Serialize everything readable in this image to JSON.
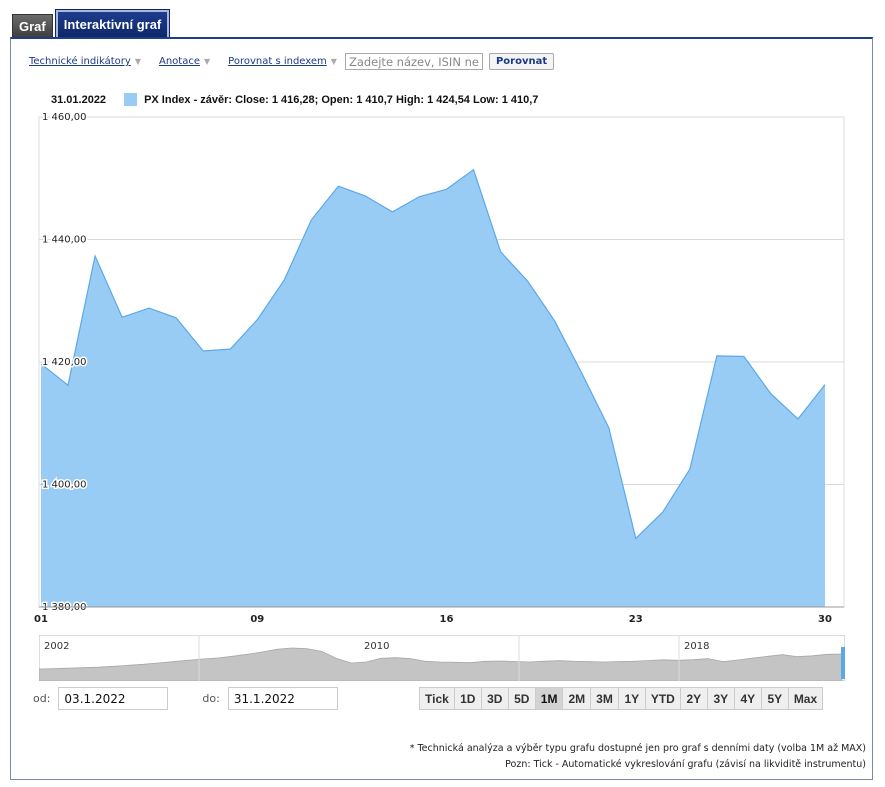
{
  "tabs": [
    {
      "label": "Graf"
    },
    {
      "label": "Interaktivní graf"
    }
  ],
  "toolbar": {
    "indicators_label": "Technické indikátory",
    "annotations_label": "Anotace",
    "compare_index_label": "Porovnat s indexem",
    "compare_placeholder": "Zadejte název, ISIN nebo ticker",
    "compare_button": "Porovnat"
  },
  "legend": {
    "date": "31.01.2022",
    "text": "PX Index - závěr: Close: 1 416,28; Open: 1 410,7 High: 1 424,54 Low: 1 410,7"
  },
  "chart_data": {
    "type": "area",
    "series": [
      {
        "name": "PX Index - závěr",
        "color": "#99ccf5",
        "line_color": "#5aa8ea",
        "x": [
          "2022-01-01",
          "2022-01-02",
          "2022-01-03",
          "2022-01-04",
          "2022-01-05",
          "2022-01-06",
          "2022-01-07",
          "2022-01-08",
          "2022-01-09",
          "2022-01-10",
          "2022-01-11",
          "2022-01-12",
          "2022-01-13",
          "2022-01-14",
          "2022-01-15",
          "2022-01-16",
          "2022-01-17",
          "2022-01-18",
          "2022-01-19",
          "2022-01-20",
          "2022-01-21",
          "2022-01-22",
          "2022-01-23",
          "2022-01-24",
          "2022-01-25",
          "2022-01-26",
          "2022-01-27",
          "2022-01-28",
          "2022-01-29",
          "2022-01-30"
        ],
        "values": [
          1419.7,
          1416.2,
          1437.3,
          1427.3,
          1428.8,
          1427.2,
          1421.8,
          1422.1,
          1426.9,
          1433.4,
          1443.2,
          1448.7,
          1447.1,
          1444.5,
          1447.0,
          1448.2,
          1451.4,
          1438.0,
          1433.2,
          1426.7,
          1418.2,
          1409.3,
          1391.2,
          1395.5,
          1402.5,
          1421.0,
          1420.9,
          1414.8,
          1410.7,
          1416.3
        ]
      }
    ],
    "x_ticks": [
      "01",
      "09",
      "16",
      "23",
      "30"
    ],
    "y_ticks": [
      "1 380,00",
      "1 400,00",
      "1 420,00",
      "1 440,00",
      "1 460,00"
    ],
    "ylim": [
      1380,
      1460
    ],
    "grid": true,
    "navigator": {
      "year_labels": [
        "2002",
        "2010",
        "2018"
      ],
      "values": [
        540,
        560,
        590,
        620,
        650,
        700,
        760,
        820,
        900,
        980,
        1060,
        1140,
        1200,
        1300,
        1420,
        1560,
        1720,
        1800,
        1760,
        1600,
        1180,
        900,
        960,
        1180,
        1220,
        1160,
        1000,
        960,
        940,
        920,
        1000,
        1020,
        990,
        960,
        1010,
        1040,
        1000,
        980,
        960,
        990,
        1000,
        1050,
        1090,
        1060,
        1100,
        1160,
        980,
        1080,
        1200,
        1300,
        1400,
        1280,
        1330,
        1420,
        1440
      ]
    }
  },
  "date_range": {
    "from_label": "od:",
    "from_value": "03.1.2022",
    "to_label": "do:",
    "to_value": "31.1.2022"
  },
  "range_buttons": [
    "Tick",
    "1D",
    "3D",
    "5D",
    "1M",
    "2M",
    "3M",
    "1Y",
    "YTD",
    "2Y",
    "3Y",
    "4Y",
    "5Y",
    "Max"
  ],
  "range_selected": "1M",
  "footnotes": {
    "line1": "* Technická analýza a výběr typu grafu dostupné jen pro graf s denními daty (volba 1M až MAX)",
    "line2": "Pozn: Tick - Automatické vykreslování grafu (závisí na likviditě instrumentu)"
  }
}
